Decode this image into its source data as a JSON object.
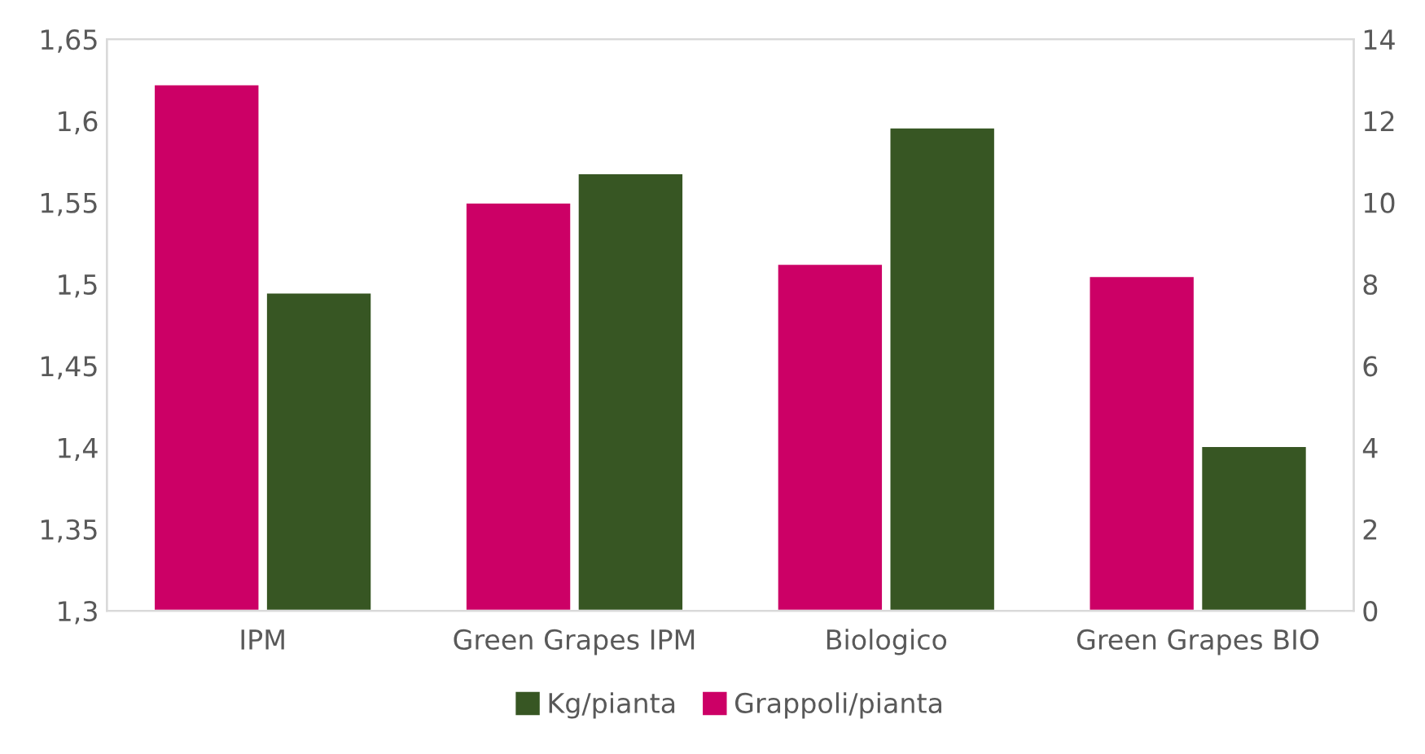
{
  "chart_data": {
    "type": "bar",
    "categories": [
      "IPM",
      "Green Grapes IPM",
      "Biologico",
      "Green Grapes BIO"
    ],
    "series": [
      {
        "name": "Grappoli/pianta",
        "color": "#cc0066",
        "axis": "y2",
        "values": [
          12.9,
          10.0,
          8.5,
          8.2
        ]
      },
      {
        "name": "Kg/pianta",
        "color": "#375623",
        "values": [
          1.495,
          1.568,
          1.596,
          1.401
        ]
      }
    ],
    "ylim": [
      1.3,
      1.65
    ],
    "yticks": [
      {
        "value": 1.3,
        "label": "1,3"
      },
      {
        "value": 1.35,
        "label": "1,35"
      },
      {
        "value": 1.4,
        "label": "1,4"
      },
      {
        "value": 1.45,
        "label": "1,45"
      },
      {
        "value": 1.5,
        "label": "1,5"
      },
      {
        "value": 1.55,
        "label": "1,55"
      },
      {
        "value": 1.6,
        "label": "1,6"
      },
      {
        "value": 1.65,
        "label": "1,65"
      }
    ],
    "y2lim": [
      0,
      14
    ],
    "y2ticks": [
      0,
      2,
      4,
      6,
      8,
      10,
      12,
      14
    ],
    "legend": "bottom",
    "grid": false
  }
}
